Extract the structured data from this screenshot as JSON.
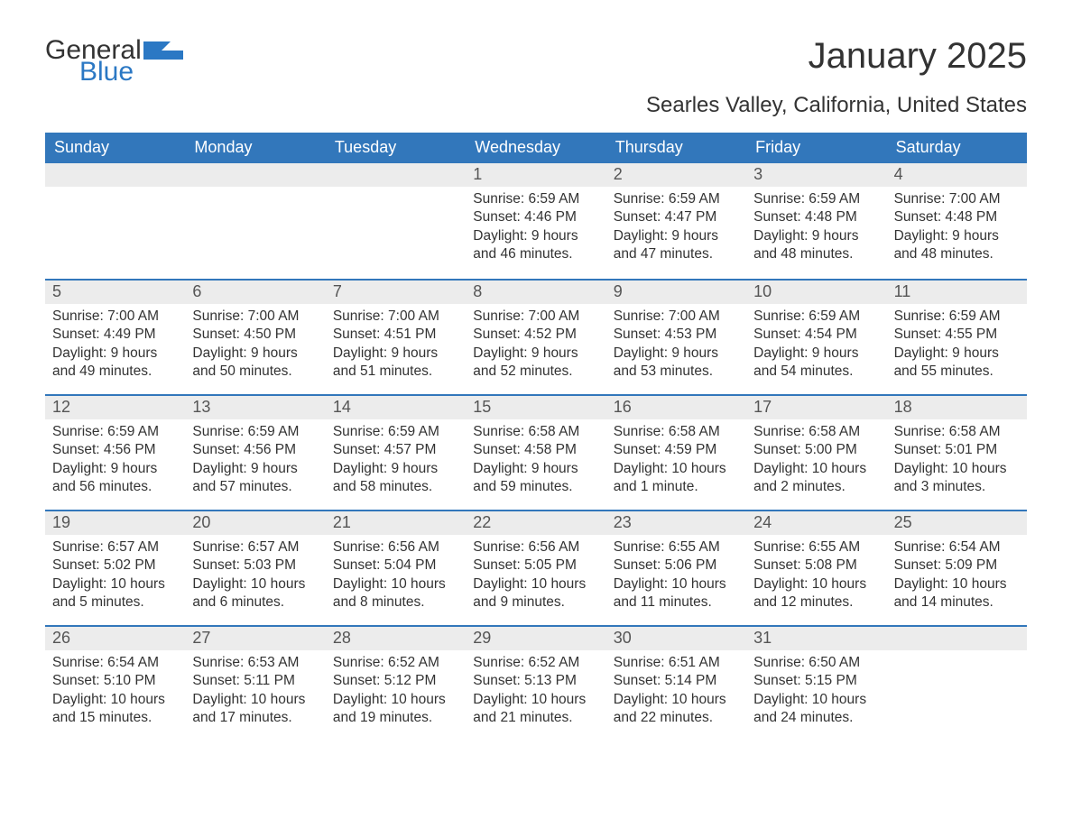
{
  "brand": {
    "general": "General",
    "blue": "Blue",
    "flag_color": "#2b78c4"
  },
  "title": "January 2025",
  "location": "Searles Valley, California, United States",
  "colors": {
    "header_bg": "#3277bb",
    "header_text": "#ffffff",
    "daynum_bg": "#ececec",
    "daynum_text": "#555555",
    "body_text": "#333333",
    "week_divider": "#3277bb",
    "page_bg": "#ffffff"
  },
  "weekdays": [
    "Sunday",
    "Monday",
    "Tuesday",
    "Wednesday",
    "Thursday",
    "Friday",
    "Saturday"
  ],
  "weeks": [
    [
      null,
      null,
      null,
      {
        "n": "1",
        "sr": "Sunrise: 6:59 AM",
        "ss": "Sunset: 4:46 PM",
        "d1": "Daylight: 9 hours",
        "d2": "and 46 minutes."
      },
      {
        "n": "2",
        "sr": "Sunrise: 6:59 AM",
        "ss": "Sunset: 4:47 PM",
        "d1": "Daylight: 9 hours",
        "d2": "and 47 minutes."
      },
      {
        "n": "3",
        "sr": "Sunrise: 6:59 AM",
        "ss": "Sunset: 4:48 PM",
        "d1": "Daylight: 9 hours",
        "d2": "and 48 minutes."
      },
      {
        "n": "4",
        "sr": "Sunrise: 7:00 AM",
        "ss": "Sunset: 4:48 PM",
        "d1": "Daylight: 9 hours",
        "d2": "and 48 minutes."
      }
    ],
    [
      {
        "n": "5",
        "sr": "Sunrise: 7:00 AM",
        "ss": "Sunset: 4:49 PM",
        "d1": "Daylight: 9 hours",
        "d2": "and 49 minutes."
      },
      {
        "n": "6",
        "sr": "Sunrise: 7:00 AM",
        "ss": "Sunset: 4:50 PM",
        "d1": "Daylight: 9 hours",
        "d2": "and 50 minutes."
      },
      {
        "n": "7",
        "sr": "Sunrise: 7:00 AM",
        "ss": "Sunset: 4:51 PM",
        "d1": "Daylight: 9 hours",
        "d2": "and 51 minutes."
      },
      {
        "n": "8",
        "sr": "Sunrise: 7:00 AM",
        "ss": "Sunset: 4:52 PM",
        "d1": "Daylight: 9 hours",
        "d2": "and 52 minutes."
      },
      {
        "n": "9",
        "sr": "Sunrise: 7:00 AM",
        "ss": "Sunset: 4:53 PM",
        "d1": "Daylight: 9 hours",
        "d2": "and 53 minutes."
      },
      {
        "n": "10",
        "sr": "Sunrise: 6:59 AM",
        "ss": "Sunset: 4:54 PM",
        "d1": "Daylight: 9 hours",
        "d2": "and 54 minutes."
      },
      {
        "n": "11",
        "sr": "Sunrise: 6:59 AM",
        "ss": "Sunset: 4:55 PM",
        "d1": "Daylight: 9 hours",
        "d2": "and 55 minutes."
      }
    ],
    [
      {
        "n": "12",
        "sr": "Sunrise: 6:59 AM",
        "ss": "Sunset: 4:56 PM",
        "d1": "Daylight: 9 hours",
        "d2": "and 56 minutes."
      },
      {
        "n": "13",
        "sr": "Sunrise: 6:59 AM",
        "ss": "Sunset: 4:56 PM",
        "d1": "Daylight: 9 hours",
        "d2": "and 57 minutes."
      },
      {
        "n": "14",
        "sr": "Sunrise: 6:59 AM",
        "ss": "Sunset: 4:57 PM",
        "d1": "Daylight: 9 hours",
        "d2": "and 58 minutes."
      },
      {
        "n": "15",
        "sr": "Sunrise: 6:58 AM",
        "ss": "Sunset: 4:58 PM",
        "d1": "Daylight: 9 hours",
        "d2": "and 59 minutes."
      },
      {
        "n": "16",
        "sr": "Sunrise: 6:58 AM",
        "ss": "Sunset: 4:59 PM",
        "d1": "Daylight: 10 hours",
        "d2": "and 1 minute."
      },
      {
        "n": "17",
        "sr": "Sunrise: 6:58 AM",
        "ss": "Sunset: 5:00 PM",
        "d1": "Daylight: 10 hours",
        "d2": "and 2 minutes."
      },
      {
        "n": "18",
        "sr": "Sunrise: 6:58 AM",
        "ss": "Sunset: 5:01 PM",
        "d1": "Daylight: 10 hours",
        "d2": "and 3 minutes."
      }
    ],
    [
      {
        "n": "19",
        "sr": "Sunrise: 6:57 AM",
        "ss": "Sunset: 5:02 PM",
        "d1": "Daylight: 10 hours",
        "d2": "and 5 minutes."
      },
      {
        "n": "20",
        "sr": "Sunrise: 6:57 AM",
        "ss": "Sunset: 5:03 PM",
        "d1": "Daylight: 10 hours",
        "d2": "and 6 minutes."
      },
      {
        "n": "21",
        "sr": "Sunrise: 6:56 AM",
        "ss": "Sunset: 5:04 PM",
        "d1": "Daylight: 10 hours",
        "d2": "and 8 minutes."
      },
      {
        "n": "22",
        "sr": "Sunrise: 6:56 AM",
        "ss": "Sunset: 5:05 PM",
        "d1": "Daylight: 10 hours",
        "d2": "and 9 minutes."
      },
      {
        "n": "23",
        "sr": "Sunrise: 6:55 AM",
        "ss": "Sunset: 5:06 PM",
        "d1": "Daylight: 10 hours",
        "d2": "and 11 minutes."
      },
      {
        "n": "24",
        "sr": "Sunrise: 6:55 AM",
        "ss": "Sunset: 5:08 PM",
        "d1": "Daylight: 10 hours",
        "d2": "and 12 minutes."
      },
      {
        "n": "25",
        "sr": "Sunrise: 6:54 AM",
        "ss": "Sunset: 5:09 PM",
        "d1": "Daylight: 10 hours",
        "d2": "and 14 minutes."
      }
    ],
    [
      {
        "n": "26",
        "sr": "Sunrise: 6:54 AM",
        "ss": "Sunset: 5:10 PM",
        "d1": "Daylight: 10 hours",
        "d2": "and 15 minutes."
      },
      {
        "n": "27",
        "sr": "Sunrise: 6:53 AM",
        "ss": "Sunset: 5:11 PM",
        "d1": "Daylight: 10 hours",
        "d2": "and 17 minutes."
      },
      {
        "n": "28",
        "sr": "Sunrise: 6:52 AM",
        "ss": "Sunset: 5:12 PM",
        "d1": "Daylight: 10 hours",
        "d2": "and 19 minutes."
      },
      {
        "n": "29",
        "sr": "Sunrise: 6:52 AM",
        "ss": "Sunset: 5:13 PM",
        "d1": "Daylight: 10 hours",
        "d2": "and 21 minutes."
      },
      {
        "n": "30",
        "sr": "Sunrise: 6:51 AM",
        "ss": "Sunset: 5:14 PM",
        "d1": "Daylight: 10 hours",
        "d2": "and 22 minutes."
      },
      {
        "n": "31",
        "sr": "Sunrise: 6:50 AM",
        "ss": "Sunset: 5:15 PM",
        "d1": "Daylight: 10 hours",
        "d2": "and 24 minutes."
      },
      null
    ]
  ]
}
